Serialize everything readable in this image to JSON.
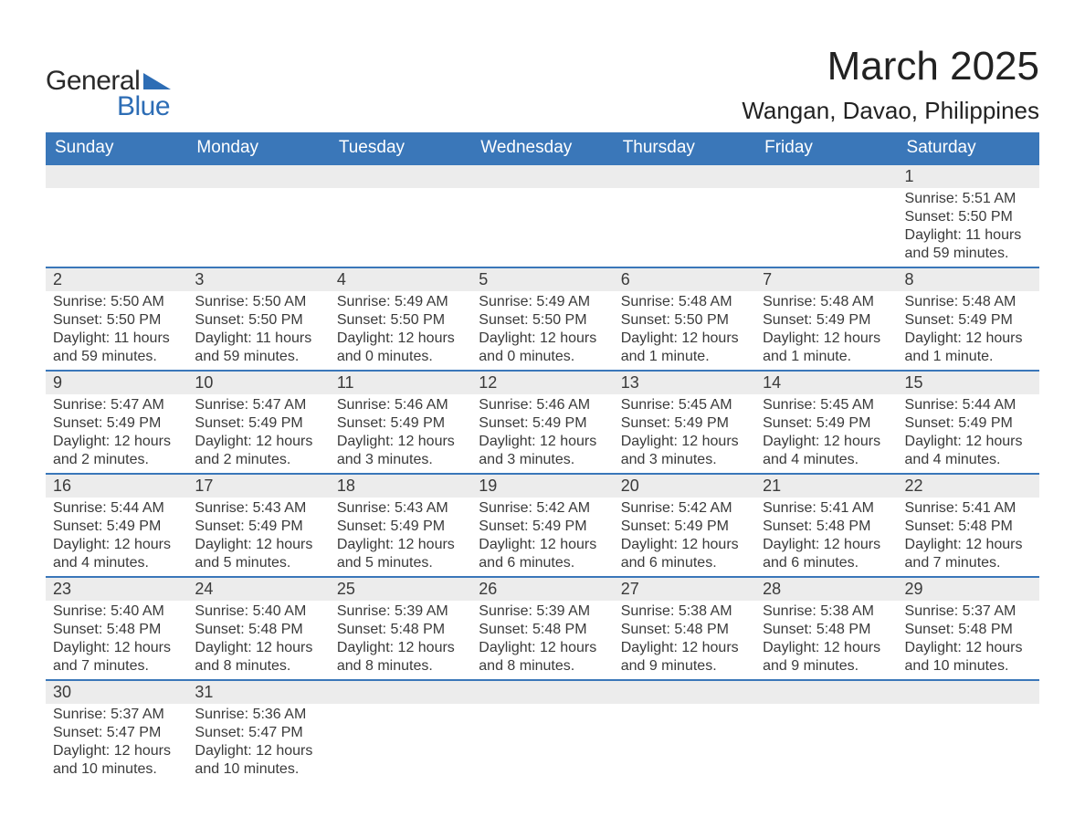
{
  "logo": {
    "text1": "General",
    "text2": "Blue",
    "flag_color": "#2d6db5"
  },
  "title": {
    "month": "March 2025",
    "location": "Wangan, Davao, Philippines"
  },
  "colors": {
    "header_bg": "#3a77b9",
    "header_text": "#ffffff",
    "daynum_bg": "#ececec",
    "row_divider": "#3a77b9",
    "body_text": "#3a3a3a",
    "page_bg": "#ffffff"
  },
  "day_headers": [
    "Sunday",
    "Monday",
    "Tuesday",
    "Wednesday",
    "Thursday",
    "Friday",
    "Saturday"
  ],
  "weeks": [
    [
      null,
      null,
      null,
      null,
      null,
      null,
      {
        "n": "1",
        "sr": "Sunrise: 5:51 AM",
        "ss": "Sunset: 5:50 PM",
        "d1": "Daylight: 11 hours",
        "d2": "and 59 minutes."
      }
    ],
    [
      {
        "n": "2",
        "sr": "Sunrise: 5:50 AM",
        "ss": "Sunset: 5:50 PM",
        "d1": "Daylight: 11 hours",
        "d2": "and 59 minutes."
      },
      {
        "n": "3",
        "sr": "Sunrise: 5:50 AM",
        "ss": "Sunset: 5:50 PM",
        "d1": "Daylight: 11 hours",
        "d2": "and 59 minutes."
      },
      {
        "n": "4",
        "sr": "Sunrise: 5:49 AM",
        "ss": "Sunset: 5:50 PM",
        "d1": "Daylight: 12 hours",
        "d2": "and 0 minutes."
      },
      {
        "n": "5",
        "sr": "Sunrise: 5:49 AM",
        "ss": "Sunset: 5:50 PM",
        "d1": "Daylight: 12 hours",
        "d2": "and 0 minutes."
      },
      {
        "n": "6",
        "sr": "Sunrise: 5:48 AM",
        "ss": "Sunset: 5:50 PM",
        "d1": "Daylight: 12 hours",
        "d2": "and 1 minute."
      },
      {
        "n": "7",
        "sr": "Sunrise: 5:48 AM",
        "ss": "Sunset: 5:49 PM",
        "d1": "Daylight: 12 hours",
        "d2": "and 1 minute."
      },
      {
        "n": "8",
        "sr": "Sunrise: 5:48 AM",
        "ss": "Sunset: 5:49 PM",
        "d1": "Daylight: 12 hours",
        "d2": "and 1 minute."
      }
    ],
    [
      {
        "n": "9",
        "sr": "Sunrise: 5:47 AM",
        "ss": "Sunset: 5:49 PM",
        "d1": "Daylight: 12 hours",
        "d2": "and 2 minutes."
      },
      {
        "n": "10",
        "sr": "Sunrise: 5:47 AM",
        "ss": "Sunset: 5:49 PM",
        "d1": "Daylight: 12 hours",
        "d2": "and 2 minutes."
      },
      {
        "n": "11",
        "sr": "Sunrise: 5:46 AM",
        "ss": "Sunset: 5:49 PM",
        "d1": "Daylight: 12 hours",
        "d2": "and 3 minutes."
      },
      {
        "n": "12",
        "sr": "Sunrise: 5:46 AM",
        "ss": "Sunset: 5:49 PM",
        "d1": "Daylight: 12 hours",
        "d2": "and 3 minutes."
      },
      {
        "n": "13",
        "sr": "Sunrise: 5:45 AM",
        "ss": "Sunset: 5:49 PM",
        "d1": "Daylight: 12 hours",
        "d2": "and 3 minutes."
      },
      {
        "n": "14",
        "sr": "Sunrise: 5:45 AM",
        "ss": "Sunset: 5:49 PM",
        "d1": "Daylight: 12 hours",
        "d2": "and 4 minutes."
      },
      {
        "n": "15",
        "sr": "Sunrise: 5:44 AM",
        "ss": "Sunset: 5:49 PM",
        "d1": "Daylight: 12 hours",
        "d2": "and 4 minutes."
      }
    ],
    [
      {
        "n": "16",
        "sr": "Sunrise: 5:44 AM",
        "ss": "Sunset: 5:49 PM",
        "d1": "Daylight: 12 hours",
        "d2": "and 4 minutes."
      },
      {
        "n": "17",
        "sr": "Sunrise: 5:43 AM",
        "ss": "Sunset: 5:49 PM",
        "d1": "Daylight: 12 hours",
        "d2": "and 5 minutes."
      },
      {
        "n": "18",
        "sr": "Sunrise: 5:43 AM",
        "ss": "Sunset: 5:49 PM",
        "d1": "Daylight: 12 hours",
        "d2": "and 5 minutes."
      },
      {
        "n": "19",
        "sr": "Sunrise: 5:42 AM",
        "ss": "Sunset: 5:49 PM",
        "d1": "Daylight: 12 hours",
        "d2": "and 6 minutes."
      },
      {
        "n": "20",
        "sr": "Sunrise: 5:42 AM",
        "ss": "Sunset: 5:49 PM",
        "d1": "Daylight: 12 hours",
        "d2": "and 6 minutes."
      },
      {
        "n": "21",
        "sr": "Sunrise: 5:41 AM",
        "ss": "Sunset: 5:48 PM",
        "d1": "Daylight: 12 hours",
        "d2": "and 6 minutes."
      },
      {
        "n": "22",
        "sr": "Sunrise: 5:41 AM",
        "ss": "Sunset: 5:48 PM",
        "d1": "Daylight: 12 hours",
        "d2": "and 7 minutes."
      }
    ],
    [
      {
        "n": "23",
        "sr": "Sunrise: 5:40 AM",
        "ss": "Sunset: 5:48 PM",
        "d1": "Daylight: 12 hours",
        "d2": "and 7 minutes."
      },
      {
        "n": "24",
        "sr": "Sunrise: 5:40 AM",
        "ss": "Sunset: 5:48 PM",
        "d1": "Daylight: 12 hours",
        "d2": "and 8 minutes."
      },
      {
        "n": "25",
        "sr": "Sunrise: 5:39 AM",
        "ss": "Sunset: 5:48 PM",
        "d1": "Daylight: 12 hours",
        "d2": "and 8 minutes."
      },
      {
        "n": "26",
        "sr": "Sunrise: 5:39 AM",
        "ss": "Sunset: 5:48 PM",
        "d1": "Daylight: 12 hours",
        "d2": "and 8 minutes."
      },
      {
        "n": "27",
        "sr": "Sunrise: 5:38 AM",
        "ss": "Sunset: 5:48 PM",
        "d1": "Daylight: 12 hours",
        "d2": "and 9 minutes."
      },
      {
        "n": "28",
        "sr": "Sunrise: 5:38 AM",
        "ss": "Sunset: 5:48 PM",
        "d1": "Daylight: 12 hours",
        "d2": "and 9 minutes."
      },
      {
        "n": "29",
        "sr": "Sunrise: 5:37 AM",
        "ss": "Sunset: 5:48 PM",
        "d1": "Daylight: 12 hours",
        "d2": "and 10 minutes."
      }
    ],
    [
      {
        "n": "30",
        "sr": "Sunrise: 5:37 AM",
        "ss": "Sunset: 5:47 PM",
        "d1": "Daylight: 12 hours",
        "d2": "and 10 minutes."
      },
      {
        "n": "31",
        "sr": "Sunrise: 5:36 AM",
        "ss": "Sunset: 5:47 PM",
        "d1": "Daylight: 12 hours",
        "d2": "and 10 minutes."
      },
      null,
      null,
      null,
      null,
      null
    ]
  ]
}
